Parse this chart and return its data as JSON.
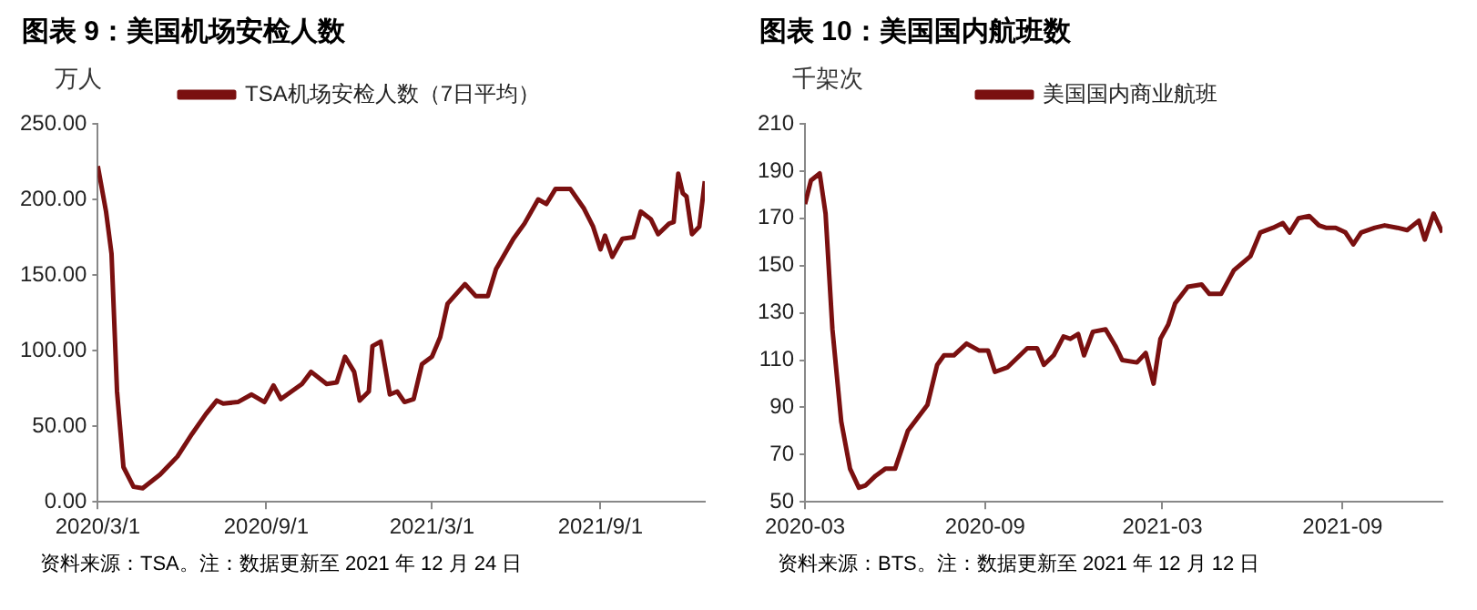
{
  "chart_data": [
    {
      "type": "line",
      "title": "图表 9：美国机场安检人数",
      "ylabel": "万人",
      "legend": "top",
      "marker": "none",
      "line_style": "solid",
      "grid": false,
      "xlim": [
        "2020-03-01",
        "2021-12-24"
      ],
      "xticks": [
        {
          "value": "2020-03-01",
          "label": "2020/3/1"
        },
        {
          "value": "2020-09-01",
          "label": "2020/9/1"
        },
        {
          "value": "2021-03-01",
          "label": "2021/3/1"
        },
        {
          "value": "2021-09-01",
          "label": "2021/9/1"
        }
      ],
      "ylim": [
        0,
        250
      ],
      "yticks": [
        {
          "value": 0,
          "label": "0.00"
        },
        {
          "value": 50,
          "label": "50.00"
        },
        {
          "value": 100,
          "label": "100.00"
        },
        {
          "value": 150,
          "label": "150.00"
        },
        {
          "value": 200,
          "label": "200.00"
        },
        {
          "value": 250,
          "label": "250.00"
        }
      ],
      "annotations": [
        "资料来源：TSA。注：数据更新至 2021 年 12 月 24 日"
      ],
      "x": [
        "2020-03-01",
        "2020-03-10",
        "2020-03-16",
        "2020-03-22",
        "2020-03-29",
        "2020-04-09",
        "2020-04-19",
        "2020-05-08",
        "2020-05-27",
        "2020-06-12",
        "2020-06-27",
        "2020-07-09",
        "2020-07-16",
        "2020-08-01",
        "2020-08-16",
        "2020-08-30",
        "2020-09-09",
        "2020-09-17",
        "2020-10-10",
        "2020-10-20",
        "2020-11-06",
        "2020-11-17",
        "2020-11-26",
        "2020-12-06",
        "2020-12-12",
        "2020-12-22",
        "2020-12-26",
        "2021-01-04",
        "2021-01-14",
        "2021-01-22",
        "2021-01-30",
        "2021-02-09",
        "2021-02-18",
        "2021-03-01",
        "2021-03-10",
        "2021-03-18",
        "2021-04-06",
        "2021-04-18",
        "2021-05-01",
        "2021-05-10",
        "2021-05-29",
        "2021-06-10",
        "2021-06-25",
        "2021-07-04",
        "2021-07-14",
        "2021-07-30",
        "2021-08-14",
        "2021-08-24",
        "2021-09-01",
        "2021-09-06",
        "2021-09-14",
        "2021-09-25",
        "2021-10-07",
        "2021-10-15",
        "2021-10-26",
        "2021-11-03",
        "2021-11-15",
        "2021-11-20",
        "2021-11-25",
        "2021-11-30",
        "2021-12-04",
        "2021-12-10",
        "2021-12-18",
        "2021-12-24"
      ],
      "series": [
        {
          "name": "TSA机场安检人数（7日平均）",
          "color": "#7a1010",
          "values": [
            222,
            192,
            164,
            73,
            23,
            10,
            9,
            18,
            30,
            45,
            58,
            67,
            65,
            66,
            71,
            66,
            77,
            68,
            78,
            86,
            78,
            79,
            96,
            86,
            67,
            73,
            103,
            106,
            71,
            73,
            66,
            68,
            91,
            96,
            109,
            131,
            144,
            136,
            136,
            154,
            174,
            184,
            200,
            197,
            207,
            207,
            194,
            182,
            167,
            176,
            162,
            174,
            175,
            192,
            187,
            177,
            184,
            185,
            217,
            204,
            202,
            177,
            182,
            212
          ]
        }
      ]
    },
    {
      "type": "line",
      "title": "图表 10：美国国内航班数",
      "ylabel": "千架次",
      "legend": "top",
      "marker": "none",
      "line_style": "solid",
      "grid": false,
      "xlim": [
        "2020-03-01",
        "2021-12-12"
      ],
      "xticks": [
        {
          "value": "2020-03-01",
          "label": "2020-03"
        },
        {
          "value": "2020-09-01",
          "label": "2020-09"
        },
        {
          "value": "2021-03-01",
          "label": "2021-03"
        },
        {
          "value": "2021-09-01",
          "label": "2021-09"
        }
      ],
      "ylim": [
        50,
        210
      ],
      "yticks": [
        50,
        70,
        90,
        110,
        130,
        150,
        170,
        190,
        210
      ],
      "annotations": [
        "资料来源：BTS。注：数据更新至 2021 年 12 月 12 日"
      ],
      "x": [
        "2020-03-01",
        "2020-03-07",
        "2020-03-16",
        "2020-03-22",
        "2020-03-29",
        "2020-04-07",
        "2020-04-16",
        "2020-04-25",
        "2020-05-02",
        "2020-05-12",
        "2020-05-22",
        "2020-06-01",
        "2020-06-14",
        "2020-07-04",
        "2020-07-14",
        "2020-07-21",
        "2020-07-31",
        "2020-08-13",
        "2020-08-26",
        "2020-09-04",
        "2020-09-11",
        "2020-09-24",
        "2020-10-14",
        "2020-10-24",
        "2020-10-31",
        "2020-11-10",
        "2020-11-20",
        "2020-11-27",
        "2020-12-05",
        "2020-12-11",
        "2020-12-20",
        "2021-01-02",
        "2021-01-12",
        "2021-01-19",
        "2021-02-03",
        "2021-02-12",
        "2021-02-20",
        "2021-02-27",
        "2021-03-07",
        "2021-03-14",
        "2021-03-27",
        "2021-04-10",
        "2021-04-18",
        "2021-04-30",
        "2021-05-13",
        "2021-05-30",
        "2021-06-09",
        "2021-06-22",
        "2021-07-02",
        "2021-07-09",
        "2021-07-18",
        "2021-07-29",
        "2021-08-08",
        "2021-08-15",
        "2021-08-25",
        "2021-09-04",
        "2021-09-12",
        "2021-09-20",
        "2021-10-04",
        "2021-10-14",
        "2021-10-27",
        "2021-11-06",
        "2021-11-18",
        "2021-11-24",
        "2021-12-03",
        "2021-12-12"
      ],
      "series": [
        {
          "name": "美国国内商业航班",
          "color": "#7a1010",
          "values": [
            176,
            186,
            189,
            172,
            123,
            84,
            64,
            56,
            57,
            61,
            64,
            64,
            80,
            91,
            108,
            112,
            112,
            117,
            114,
            114,
            105,
            107,
            115,
            115,
            108,
            112,
            120,
            119,
            121,
            112,
            122,
            123,
            116,
            110,
            109,
            113,
            100,
            119,
            125,
            134,
            141,
            142,
            138,
            138,
            148,
            154,
            164,
            166,
            168,
            164,
            170,
            171,
            167,
            166,
            166,
            164,
            159,
            164,
            166,
            167,
            166,
            165,
            169,
            161,
            172,
            164
          ]
        }
      ]
    }
  ]
}
